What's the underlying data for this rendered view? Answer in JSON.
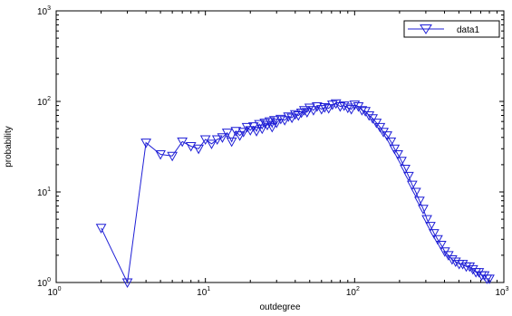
{
  "chart_data": {
    "type": "line",
    "xscale": "log",
    "yscale": "log",
    "xlim": [
      1,
      1000
    ],
    "ylim": [
      1,
      1000
    ],
    "x_ticks": [
      1,
      10,
      100,
      1000
    ],
    "y_ticks": [
      1,
      10,
      100,
      1000
    ],
    "x_tick_labels": [
      {
        "base": "10",
        "exp": "0"
      },
      {
        "base": "10",
        "exp": "1"
      },
      {
        "base": "10",
        "exp": "2"
      },
      {
        "base": "10",
        "exp": "3"
      }
    ],
    "y_tick_labels": [
      {
        "base": "10",
        "exp": "0"
      },
      {
        "base": "10",
        "exp": "1"
      },
      {
        "base": "10",
        "exp": "2"
      },
      {
        "base": "10",
        "exp": "3"
      }
    ],
    "xlabel": "outdegree",
    "ylabel": "probability",
    "grid": false,
    "legend_position": "top-right",
    "marker": "downward-triangle",
    "series_color": "#1f1fd6",
    "series": [
      {
        "name": "data1",
        "x": [
          2,
          3,
          4,
          5,
          6,
          7,
          8,
          9,
          10,
          11,
          12,
          13,
          14,
          15,
          16,
          17,
          18,
          19,
          20,
          21,
          22,
          23,
          24,
          25,
          26,
          27,
          28,
          29,
          30,
          32,
          34,
          36,
          38,
          40,
          42,
          44,
          46,
          48,
          50,
          53,
          56,
          60,
          63,
          67,
          71,
          75,
          80,
          85,
          90,
          95,
          100,
          106,
          112,
          118,
          125,
          132,
          140,
          148,
          156,
          165,
          175,
          185,
          195,
          206,
          218,
          230,
          243,
          257,
          272,
          288,
          305,
          322,
          340,
          360,
          380,
          402,
          425,
          450,
          475,
          502,
          530,
          560,
          590,
          620,
          650,
          680,
          710,
          740,
          770,
          800
        ],
        "y": [
          4,
          1,
          35,
          26,
          25,
          36,
          32,
          30,
          38,
          34,
          38,
          40,
          45,
          36,
          47,
          42,
          46,
          52,
          48,
          53,
          47,
          56,
          50,
          58,
          55,
          60,
          52,
          62,
          58,
          64,
          62,
          68,
          66,
          72,
          70,
          75,
          80,
          76,
          85,
          80,
          88,
          82,
          86,
          84,
          92,
          95,
          88,
          90,
          85,
          82,
          92,
          88,
          80,
          78,
          70,
          65,
          58,
          52,
          46,
          42,
          36,
          30,
          26,
          22,
          18,
          15,
          12,
          10,
          8,
          6.5,
          5,
          4.2,
          3.5,
          3,
          2.6,
          2.2,
          2,
          1.8,
          1.7,
          1.6,
          1.6,
          1.5,
          1.5,
          1.4,
          1.3,
          1.3,
          1.2,
          1.2,
          1.1,
          1.1
        ]
      }
    ]
  }
}
